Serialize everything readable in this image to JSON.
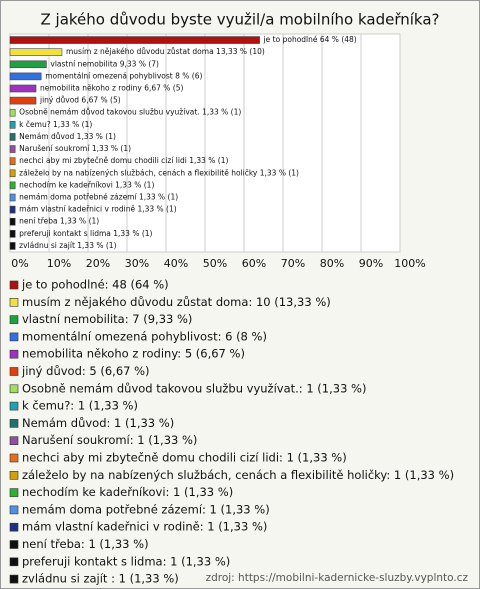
{
  "chart_data": {
    "type": "bar",
    "orientation": "horizontal",
    "title": "Z jakého důvodu byste využil/a mobilního kadeřníka?",
    "categories": [
      "je to pohodlné",
      "musím z nějakého důvodu zůstat doma",
      "vlastní nemobilita",
      "momentální omezená pohyblivost",
      "nemobilita někoho z rodiny",
      "jiný důvod",
      "Osobně nemám důvod takovou službu využívat.",
      "k čemu?",
      "Nemám důvod",
      "Narušení soukromí",
      "nechci aby mi zbytečně domu chodili cizí lidi",
      "záleželo by na nabízených službách, cenách a flexibilitě holičky",
      "nechodím ke kadeřníkovi",
      "nemám doma potřebné zázemí",
      "mám vlastní kadeřnici v rodině",
      "není třeba",
      "preferuji kontakt s lidma",
      "zvládnu si zajít"
    ],
    "values": [
      64,
      13.33,
      9.33,
      8,
      6.67,
      6.67,
      1.33,
      1.33,
      1.33,
      1.33,
      1.33,
      1.33,
      1.33,
      1.33,
      1.33,
      1.33,
      1.33,
      1.33
    ],
    "value_labels": [
      "je to pohodlné 64 % (48)",
      "musím z nějakého důvodu zůstat doma 13,33 % (10)",
      "vlastní nemobilita 9,33 % (7)",
      "momentální omezená pohyblivost 8 % (6)",
      "nemobilita někoho z rodiny 6,67 % (5)",
      "jiný důvod 6,67 % (5)",
      "Osobně nemám důvod takovou službu využívat. 1,33 % (1)",
      "k čemu? 1,33 % (1)",
      "Nemám důvod 1,33 % (1)",
      "Narušení soukromí 1,33 % (1)",
      "nechci aby mi zbytečně domu chodili cizí lidi 1,33 % (1)",
      "záleželo by na nabízených službách, cenách a flexibilitě holičky 1,33 % (1)",
      "nechodím ke kadeřníkovi 1,33 % (1)",
      "nemám doma potřebné zázemí 1,33 % (1)",
      "mám vlastní kadeřnici v rodině 1,33 % (1)",
      "není třeba 1,33 % (1)",
      "preferuji kontakt s lidma 1,33 % (1)",
      "zvládnu si zajít 1,33 % (1)"
    ],
    "legend_labels": [
      "je to pohodlné: 48 (64 %)",
      "musím z nějakého důvodu zůstat doma: 10 (13,33 %)",
      "vlastní nemobilita: 7 (9,33 %)",
      "momentální omezená pohyblivost: 6 (8 %)",
      "nemobilita někoho z rodiny: 5 (6,67 %)",
      "jiný důvod: 5 (6,67 %)",
      "Osobně nemám důvod takovou službu využívat.: 1 (1,33 %)",
      "k čemu?: 1 (1,33 %)",
      "Nemám důvod: 1 (1,33 %)",
      "Narušení soukromí: 1 (1,33 %)",
      "nechci aby mi zbytečně domu chodili cizí lidi: 1 (1,33 %)",
      "záleželo by na nabízených službách, cenách a flexibilitě holičky: 1 (1,33 %)",
      "nechodím ke kadeřníkovi: 1 (1,33 %)",
      "nemám doma potřebné zázemí: 1 (1,33 %)",
      "mám vlastní kadeřnici v rodině: 1 (1,33 %)",
      "není třeba: 1 (1,33 %)",
      "preferuji kontakt s lidma: 1 (1,33 %)",
      "zvládnu si zajít : 1 (1,33 %)"
    ],
    "colors": [
      "#b01010",
      "#f0e040",
      "#20a040",
      "#3070e0",
      "#a030c0",
      "#e04010",
      "#a0e060",
      "#20a0b0",
      "#207070",
      "#9050a0",
      "#e07020",
      "#d0a010",
      "#30b030",
      "#5090e0",
      "#203080",
      "#101010",
      "#101010",
      "#101010"
    ],
    "xlim": [
      0,
      100
    ],
    "xticks": [
      {
        "value": 0,
        "label": "0%"
      },
      {
        "value": 10,
        "label": "10%"
      },
      {
        "value": 20,
        "label": "20%"
      },
      {
        "value": 30,
        "label": "30%"
      },
      {
        "value": 40,
        "label": "40%"
      },
      {
        "value": 50,
        "label": "50%"
      },
      {
        "value": 60,
        "label": "60%"
      },
      {
        "value": 70,
        "label": "70%"
      },
      {
        "value": 80,
        "label": "80%"
      },
      {
        "value": 90,
        "label": "90%"
      },
      {
        "value": 100,
        "label": "100%"
      }
    ],
    "grid": true,
    "source": "zdroj: https://mobilni-kadernicke-sluzby.vyplnto.cz"
  }
}
